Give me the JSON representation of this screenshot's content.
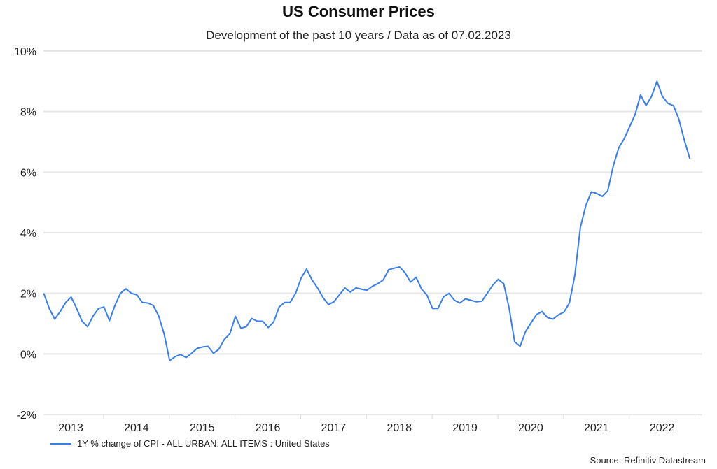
{
  "chart_data": {
    "type": "line",
    "title": "US Consumer Prices",
    "subtitle": "Development of the past 10 years / Data as of 07.02.2023",
    "xlabel": "",
    "ylabel": "",
    "ylim": [
      -2,
      10
    ],
    "yticks": [
      -2,
      0,
      2,
      4,
      6,
      8,
      10
    ],
    "ytick_labels": [
      "-2%",
      "0%",
      "2%",
      "4%",
      "6%",
      "8%",
      "10%"
    ],
    "xtick_labels": [
      "2013",
      "2014",
      "2015",
      "2016",
      "2017",
      "2018",
      "2019",
      "2020",
      "2021",
      "2022"
    ],
    "x_start": "2013-02",
    "x_end": "2022-12",
    "grid": true,
    "legend_position": "bottom-left",
    "series": [
      {
        "name": "1Y % change of CPI - ALL URBAN: ALL ITEMS : United States",
        "color": "#3a7ee8",
        "frequency": "monthly",
        "start": "2013-02",
        "values": [
          2.0,
          1.5,
          1.15,
          1.4,
          1.7,
          1.88,
          1.5,
          1.08,
          0.9,
          1.25,
          1.5,
          1.55,
          1.1,
          1.6,
          2.0,
          2.15,
          2.0,
          1.95,
          1.7,
          1.68,
          1.6,
          1.25,
          0.65,
          -0.22,
          -0.09,
          -0.02,
          -0.12,
          0.02,
          0.18,
          0.23,
          0.25,
          0.02,
          0.16,
          0.48,
          0.67,
          1.24,
          0.85,
          0.9,
          1.17,
          1.08,
          1.08,
          0.87,
          1.06,
          1.55,
          1.7,
          1.7,
          2.0,
          2.5,
          2.8,
          2.44,
          2.18,
          1.86,
          1.63,
          1.72,
          1.95,
          2.18,
          2.04,
          2.18,
          2.14,
          2.1,
          2.23,
          2.32,
          2.44,
          2.78,
          2.83,
          2.87,
          2.67,
          2.37,
          2.53,
          2.14,
          1.93,
          1.5,
          1.5,
          1.88,
          2.0,
          1.77,
          1.68,
          1.82,
          1.77,
          1.72,
          1.74,
          2.0,
          2.27,
          2.46,
          2.32,
          1.5,
          0.4,
          0.25,
          0.74,
          1.03,
          1.3,
          1.4,
          1.2,
          1.15,
          1.29,
          1.38,
          1.68,
          2.6,
          4.17,
          4.9,
          5.35,
          5.3,
          5.2,
          5.38,
          6.2,
          6.8,
          7.1,
          7.5,
          7.9,
          8.55,
          8.2,
          8.5,
          9.0,
          8.5,
          8.27,
          8.2,
          7.75,
          7.05,
          6.45
        ]
      }
    ],
    "source": "Source: Refinitiv Datastream"
  }
}
